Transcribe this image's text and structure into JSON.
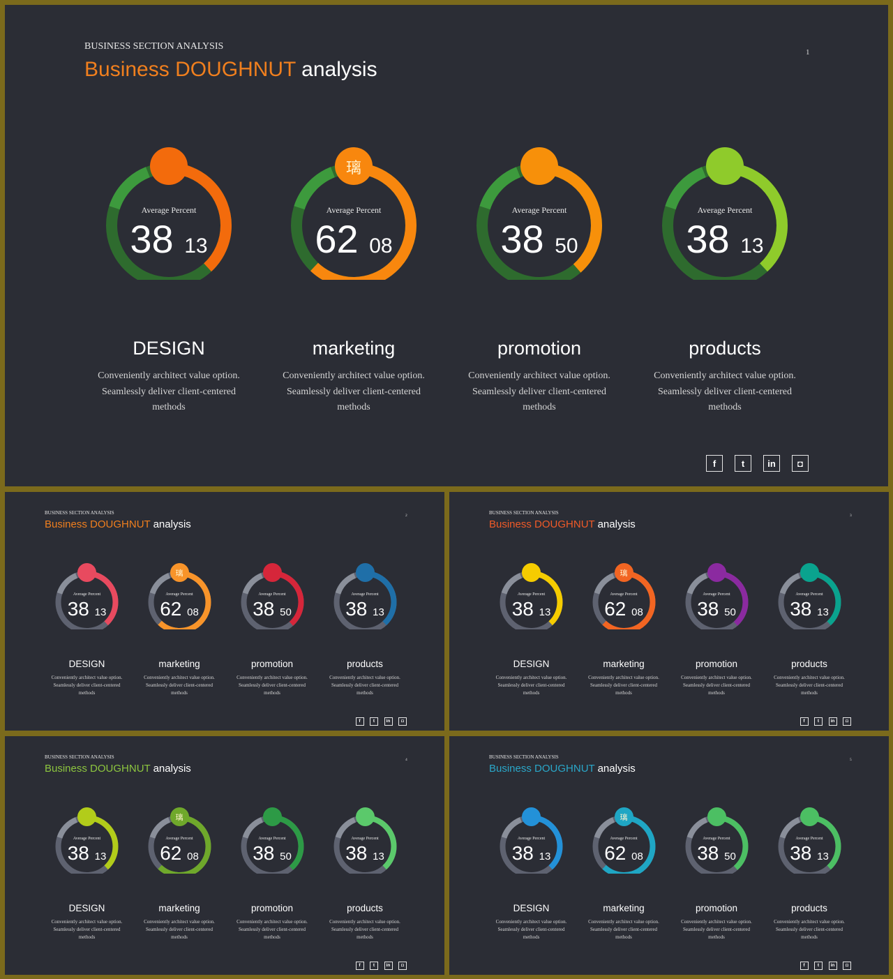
{
  "kicker": "BUSINESS SECTION ANALYSIS",
  "title_accent": "Business DOUGHNUT",
  "title_rest": " analysis",
  "avg_label": "Average Percent",
  "center_glyph": "璃",
  "desc_line1": "Conveniently architect value option.",
  "desc_line2": "Seamlessly deliver client-centered",
  "desc_line3": "methods",
  "cards": [
    {
      "label": "DESIGN",
      "big": "38",
      "small": "13",
      "percent": 0.3813
    },
    {
      "label": "marketing",
      "big": "62",
      "small": "08",
      "percent": 0.6208
    },
    {
      "label": "promotion",
      "big": "38",
      "small": "50",
      "percent": 0.385
    },
    {
      "label": "products",
      "big": "38",
      "small": "13",
      "percent": 0.3813
    }
  ],
  "social": [
    {
      "name": "facebook-icon",
      "glyph": "f"
    },
    {
      "name": "twitter-icon",
      "glyph": "t"
    },
    {
      "name": "linkedin-icon",
      "glyph": "in"
    },
    {
      "name": "instagram-icon",
      "glyph": "◘"
    }
  ],
  "slides": [
    {
      "page": "1",
      "accent": "#f07f1e",
      "track": "#2e6b2e",
      "track_accent": "#3d9a3d",
      "arc_colors": [
        "#f36b0c",
        "#f8870e",
        "#f7900a",
        "#8fcb2b"
      ]
    },
    {
      "page": "2",
      "accent": "#f07f1e",
      "track": "#5e6270",
      "track_accent": "#8a8f9a",
      "arc_colors": [
        "#e84a5f",
        "#f8942a",
        "#d6263a",
        "#1f6fa8"
      ]
    },
    {
      "page": "3",
      "accent": "#f05a28",
      "track": "#5e6270",
      "track_accent": "#8a8f9a",
      "arc_colors": [
        "#f5cc00",
        "#f26522",
        "#8b2aa0",
        "#0aa38e"
      ]
    },
    {
      "page": "4",
      "accent": "#8dc63f",
      "track": "#5e6270",
      "track_accent": "#8a8f9a",
      "arc_colors": [
        "#b2cc1a",
        "#6fa82b",
        "#2d9a46",
        "#5bc96b"
      ]
    },
    {
      "page": "5",
      "accent": "#2aa7c9",
      "track": "#5e6270",
      "track_accent": "#8a8f9a",
      "arc_colors": [
        "#2391d8",
        "#1fa6c4",
        "#4cbf63",
        "#4cbf63"
      ]
    }
  ]
}
